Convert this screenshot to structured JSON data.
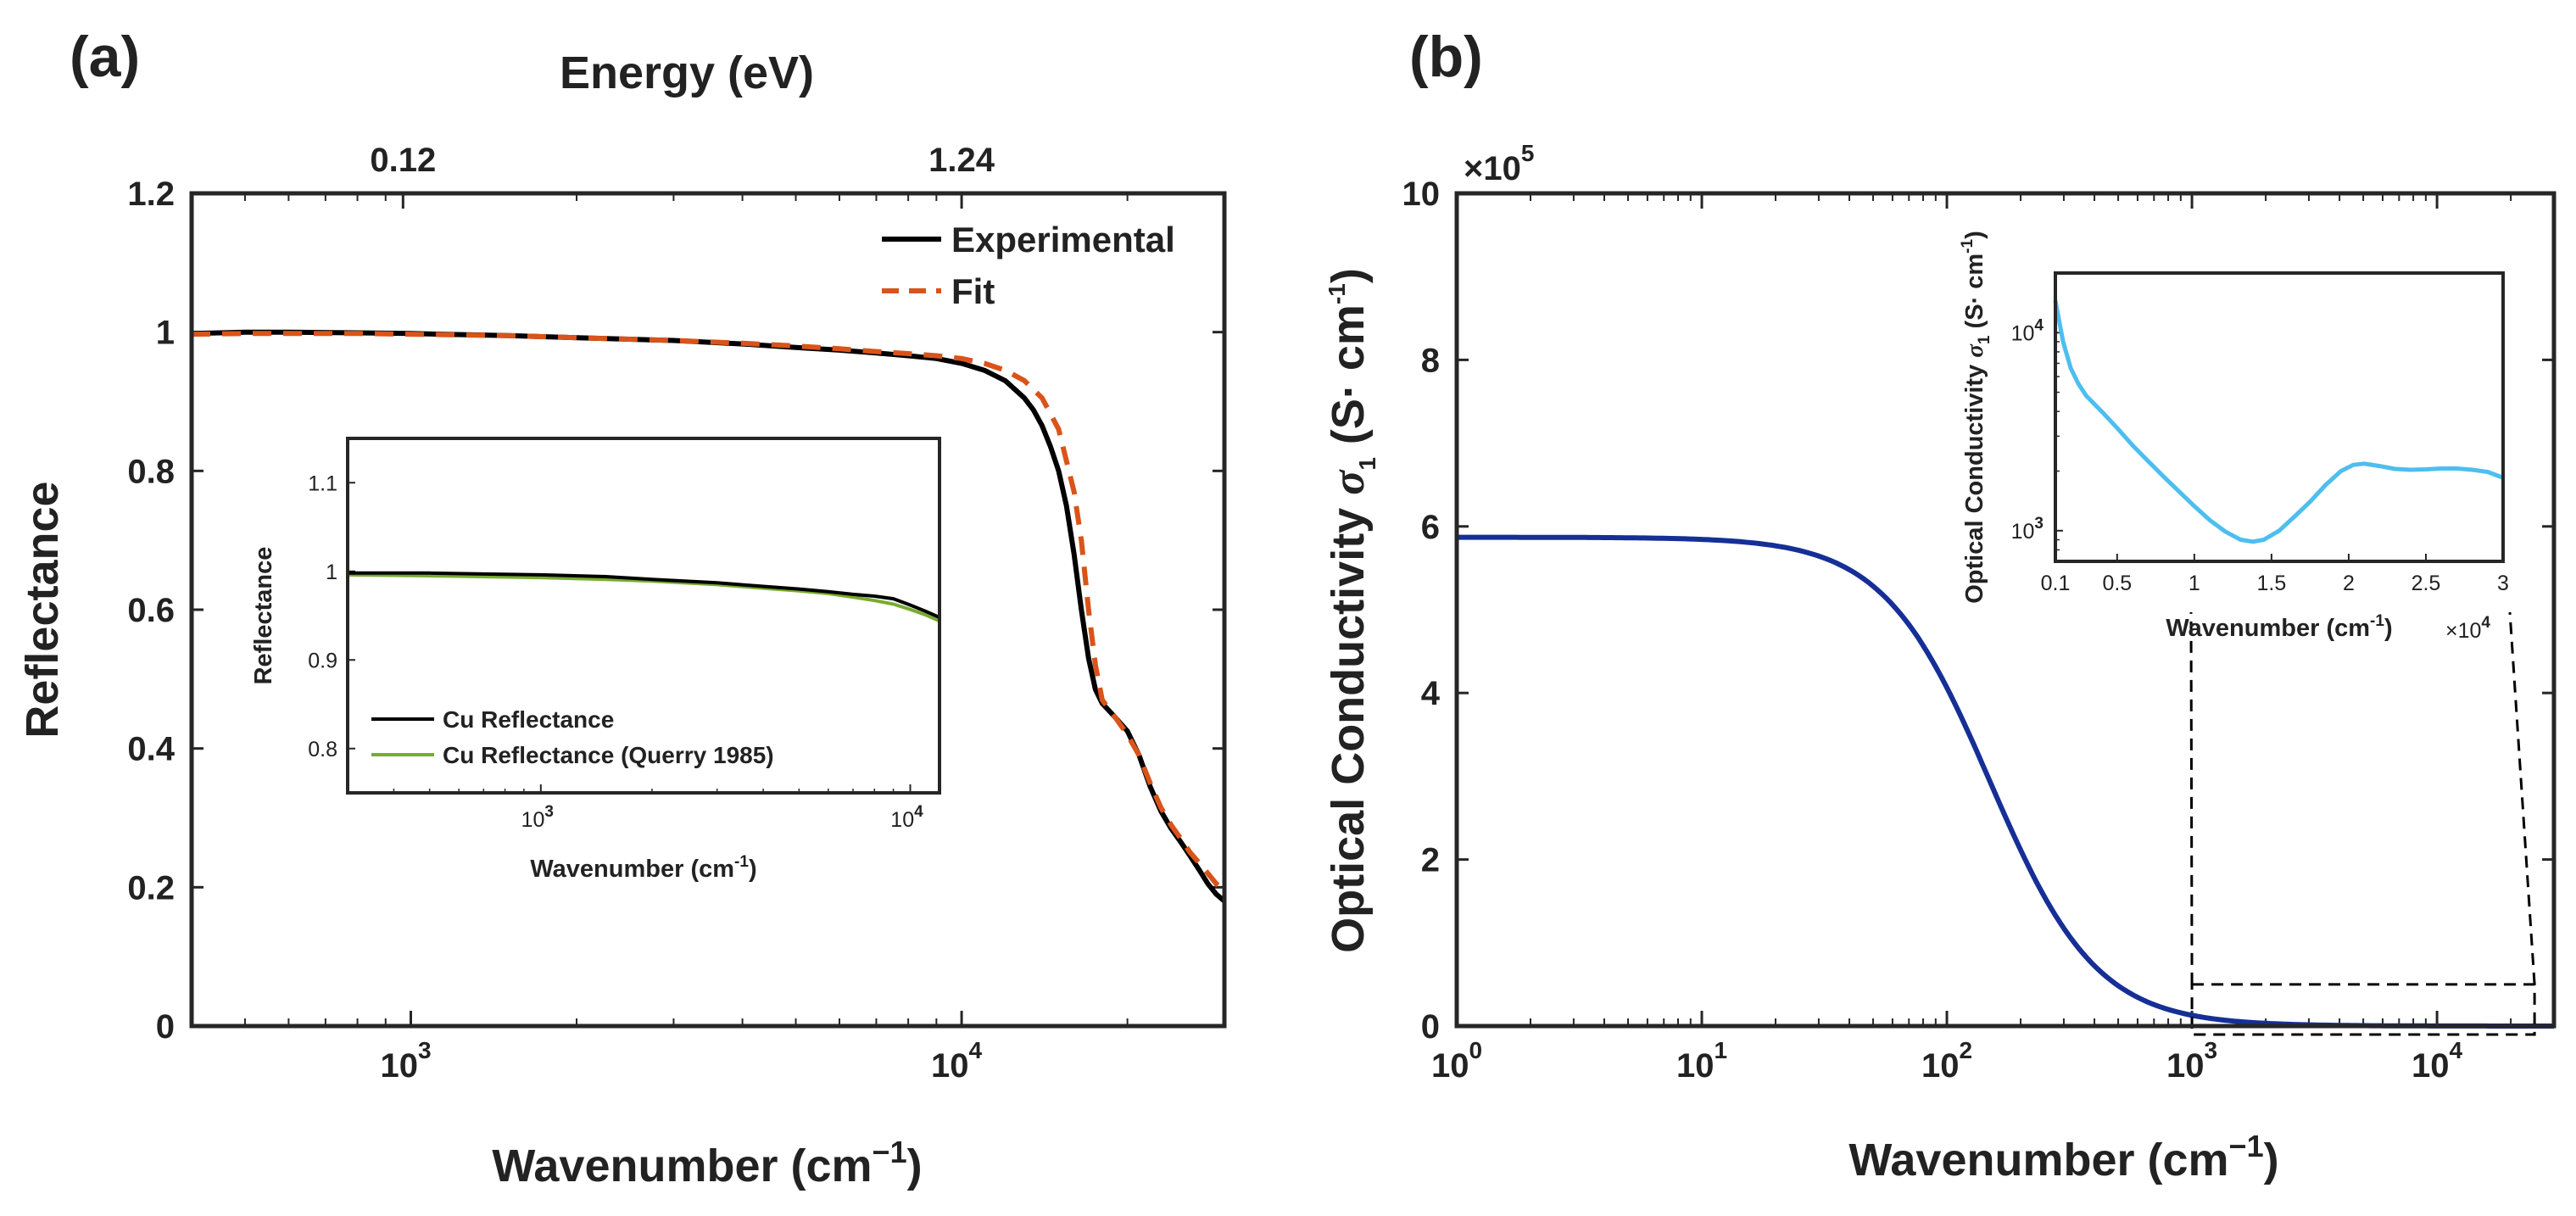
{
  "colors": {
    "experimental": "#000000",
    "fit": "#D9541A",
    "cu_querry": "#77AC30",
    "conductivity": "#162F96",
    "inset_conductivity": "#4DBEEE",
    "axis": "#262626"
  },
  "chart_data": [
    {
      "panel": "(a)",
      "type": "line",
      "xscale": "log",
      "xlim": [
        400,
        30000
      ],
      "ylim": [
        0,
        1.2
      ],
      "xlabel": "Wavenumber (cm",
      "xlabel_exp": "−1",
      "xlabel_close": ")",
      "ylabel": "Reflectance",
      "top_axis": {
        "label": "Energy (eV)",
        "ticks": [
          {
            "x": 968,
            "label": "0.12"
          },
          {
            "x": 10000,
            "label": "1.24"
          }
        ]
      },
      "xticks": [
        {
          "x": 1000,
          "base": "10",
          "exp": "3"
        },
        {
          "x": 10000,
          "base": "10",
          "exp": "4"
        }
      ],
      "yticks": [
        {
          "y": 0,
          "label": "0"
        },
        {
          "y": 0.2,
          "label": "0.2"
        },
        {
          "y": 0.4,
          "label": "0.4"
        },
        {
          "y": 0.6,
          "label": "0.6"
        },
        {
          "y": 0.8,
          "label": "0.8"
        },
        {
          "y": 1,
          "label": "1"
        },
        {
          "y": 1.2,
          "label": "1.2"
        }
      ],
      "legend": {
        "location": "top-right",
        "entries": [
          "Experimental",
          "Fit"
        ]
      },
      "series": [
        {
          "name": "Experimental",
          "style": "solid",
          "x": [
            400,
            500,
            600,
            800,
            1000,
            1500,
            2000,
            3000,
            4000,
            5000,
            6000,
            7000,
            8000,
            9000,
            10000,
            11000,
            12000,
            13000,
            13500,
            14000,
            14500,
            15000,
            15500,
            16000,
            16500,
            17000,
            17500,
            18000,
            19000,
            20000,
            21000,
            22000,
            23000,
            24000,
            25000,
            26000,
            27000,
            28000,
            29000,
            30000
          ],
          "y": [
            0.998,
            1.0,
            1.0,
            0.999,
            0.998,
            0.995,
            0.992,
            0.988,
            0.983,
            0.978,
            0.974,
            0.97,
            0.966,
            0.962,
            0.955,
            0.945,
            0.93,
            0.905,
            0.888,
            0.865,
            0.835,
            0.8,
            0.75,
            0.68,
            0.6,
            0.53,
            0.485,
            0.465,
            0.445,
            0.425,
            0.39,
            0.345,
            0.31,
            0.285,
            0.265,
            0.245,
            0.225,
            0.205,
            0.19,
            0.18
          ]
        },
        {
          "name": "Fit",
          "style": "dashed",
          "x": [
            400,
            500,
            600,
            800,
            1000,
            1500,
            2000,
            3000,
            4000,
            5000,
            6000,
            7000,
            8000,
            9000,
            10000,
            11000,
            12000,
            13000,
            14000,
            15000,
            16000,
            16500,
            17000,
            17500,
            18000,
            19000,
            20000,
            21000,
            22000,
            23000,
            24000,
            25000,
            26000,
            27000,
            28000,
            29000,
            30000
          ],
          "y": [
            0.997,
            0.998,
            0.998,
            0.998,
            0.997,
            0.995,
            0.992,
            0.988,
            0.984,
            0.98,
            0.976,
            0.972,
            0.969,
            0.966,
            0.962,
            0.955,
            0.945,
            0.93,
            0.905,
            0.86,
            0.77,
            0.7,
            0.6,
            0.52,
            0.47,
            0.445,
            0.42,
            0.39,
            0.35,
            0.315,
            0.29,
            0.27,
            0.25,
            0.235,
            0.22,
            0.205,
            0.195
          ]
        }
      ],
      "inset": {
        "type": "line",
        "xscale": "log",
        "xlim": [
          300,
          12000
        ],
        "ylim": [
          0.75,
          1.15
        ],
        "xlabel": "Wavenumber (cm",
        "xlabel_exp": "-1",
        "xlabel_close": ")",
        "ylabel": "Reflectance",
        "xticks": [
          {
            "x": 1000,
            "base": "10",
            "exp": "3"
          },
          {
            "x": 10000,
            "base": "10",
            "exp": "4"
          }
        ],
        "yticks": [
          {
            "y": 0.8,
            "label": "0.8"
          },
          {
            "y": 0.9,
            "label": "0.9"
          },
          {
            "y": 1,
            "label": "1"
          },
          {
            "y": 1.1,
            "label": "1.1"
          }
        ],
        "legend": {
          "location": "bottom-left",
          "entries": [
            "Cu Reflectance",
            "Cu Reflectance (Querry 1985)"
          ]
        },
        "series": [
          {
            "name": "Cu Reflectance",
            "x": [
              300,
              500,
              700,
              1000,
              1500,
              2000,
              3000,
              4000,
              5000,
              6000,
              7000,
              8000,
              9000,
              10000,
              11000,
              12000
            ],
            "y": [
              0.998,
              0.998,
              0.997,
              0.996,
              0.994,
              0.991,
              0.987,
              0.983,
              0.98,
              0.977,
              0.974,
              0.972,
              0.969,
              0.962,
              0.955,
              0.948
            ]
          },
          {
            "name": "Cu Reflectance (Querry 1985)",
            "x": [
              300,
              500,
              700,
              1000,
              1500,
              2000,
              3000,
              4000,
              5000,
              6000,
              7000,
              8000,
              9000,
              10000,
              11000,
              12000
            ],
            "y": [
              0.996,
              0.995,
              0.994,
              0.993,
              0.991,
              0.989,
              0.985,
              0.981,
              0.978,
              0.975,
              0.971,
              0.967,
              0.963,
              0.957,
              0.951,
              0.944
            ]
          }
        ]
      }
    },
    {
      "panel": "(b)",
      "type": "line",
      "xscale": "log",
      "xlim": [
        1,
        30000
      ],
      "ylim": [
        0,
        1000000
      ],
      "scale_multiplier": {
        "base": "×10",
        "exp": "5"
      },
      "xlabel": "Wavenumber (cm",
      "xlabel_exp": "−1",
      "xlabel_close": ")",
      "ylabel": "Optical Conductivity ",
      "ylabel_symbol": "σ",
      "ylabel_sub": "1",
      "ylabel_units": " (S· cm",
      "ylabel_units_exp": "-1",
      "ylabel_units_close": ")",
      "xticks": [
        {
          "x": 1,
          "base": "10",
          "exp": "0"
        },
        {
          "x": 10,
          "base": "10",
          "exp": "1"
        },
        {
          "x": 100,
          "base": "10",
          "exp": "2"
        },
        {
          "x": 1000,
          "base": "10",
          "exp": "3"
        },
        {
          "x": 10000,
          "base": "10",
          "exp": "4"
        }
      ],
      "yticks": [
        {
          "y": 0,
          "label": "0"
        },
        {
          "y": 200000,
          "label": "2"
        },
        {
          "y": 400000,
          "label": "4"
        },
        {
          "y": 600000,
          "label": "6"
        },
        {
          "y": 800000,
          "label": "8"
        },
        {
          "y": 1000000,
          "label": "10"
        }
      ],
      "model": {
        "sigma0": 587000,
        "tau_cm": 150
      },
      "zoom_box": {
        "x": [
          1000,
          25000
        ],
        "y": [
          0,
          50000
        ]
      },
      "inset": {
        "type": "line",
        "xscale": "linear",
        "yscale": "log",
        "xlim": [
          1000,
          30000
        ],
        "ylim": [
          700,
          20000
        ],
        "scale_multiplier": {
          "base": "×10",
          "exp": "4"
        },
        "xlabel": "Wavenumber (cm",
        "xlabel_exp": "-1",
        "xlabel_close": ")",
        "ylabel": "Optical Conductivity ",
        "ylabel_symbol": "σ",
        "ylabel_sub": "1",
        "ylabel_units": " (S· cm",
        "ylabel_units_exp": "-1",
        "ylabel_units_close": ")",
        "xticks": [
          {
            "x": 1000,
            "label": "0.1"
          },
          {
            "x": 5000,
            "label": "0.5"
          },
          {
            "x": 10000,
            "label": "1"
          },
          {
            "x": 15000,
            "label": "1.5"
          },
          {
            "x": 20000,
            "label": "2"
          },
          {
            "x": 25000,
            "label": "2.5"
          },
          {
            "x": 30000,
            "label": "3"
          }
        ],
        "yticks": [
          {
            "y": 1000,
            "base": "10",
            "exp": "3"
          },
          {
            "y": 10000,
            "base": "10",
            "exp": "4"
          }
        ],
        "series": [
          {
            "name": "inset conductivity",
            "x": [
              1000,
              1500,
              2000,
              2500,
              3000,
              4000,
              5000,
              6000,
              7000,
              8000,
              9000,
              10000,
              11000,
              12000,
              13000,
              13800,
              14500,
              15500,
              16500,
              17500,
              18500,
              19500,
              20300,
              21000,
              22000,
              23000,
              24000,
              25000,
              26000,
              27000,
              28000,
              29000,
              30000
            ],
            "y": [
              14500,
              9000,
              6600,
              5500,
              4800,
              4000,
              3300,
              2700,
              2250,
              1880,
              1580,
              1330,
              1130,
              990,
              900,
              880,
              900,
              1000,
              1180,
              1400,
              1700,
              2000,
              2150,
              2180,
              2120,
              2050,
              2030,
              2040,
              2060,
              2060,
              2030,
              1980,
              1850
            ]
          }
        ]
      }
    }
  ]
}
